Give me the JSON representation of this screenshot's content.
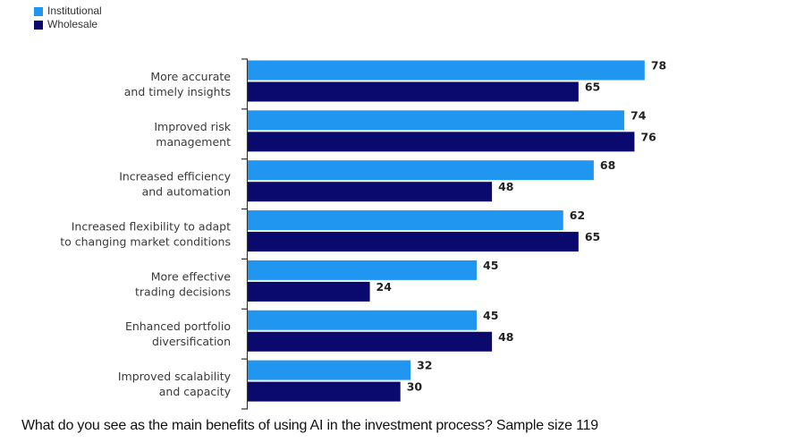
{
  "chart_data": {
    "type": "bar",
    "orientation": "horizontal",
    "title": "",
    "xlabel": "",
    "ylabel": "",
    "xlim": [
      0,
      100
    ],
    "grid": false,
    "legend_position": "top-left",
    "categories": [
      [
        "More accurate",
        "and timely insights"
      ],
      [
        "Improved risk",
        "management"
      ],
      [
        "Increased efficiency",
        "and automation"
      ],
      [
        "Increased flexibility to adapt",
        "to changing market conditions"
      ],
      [
        "More effective",
        "trading decisions"
      ],
      [
        "Enhanced portfolio",
        "diversification"
      ],
      [
        "Improved scalability",
        "and capacity"
      ]
    ],
    "series": [
      {
        "name": "Institutional",
        "color": "#2196F0",
        "values": [
          78,
          74,
          68,
          62,
          45,
          45,
          32
        ]
      },
      {
        "name": "Wholesale",
        "color": "#0A0A6E",
        "values": [
          65,
          76,
          48,
          65,
          24,
          48,
          30
        ]
      }
    ],
    "caption": "What do you see as the main benefits of using AI in the investment process? Sample size 119"
  }
}
